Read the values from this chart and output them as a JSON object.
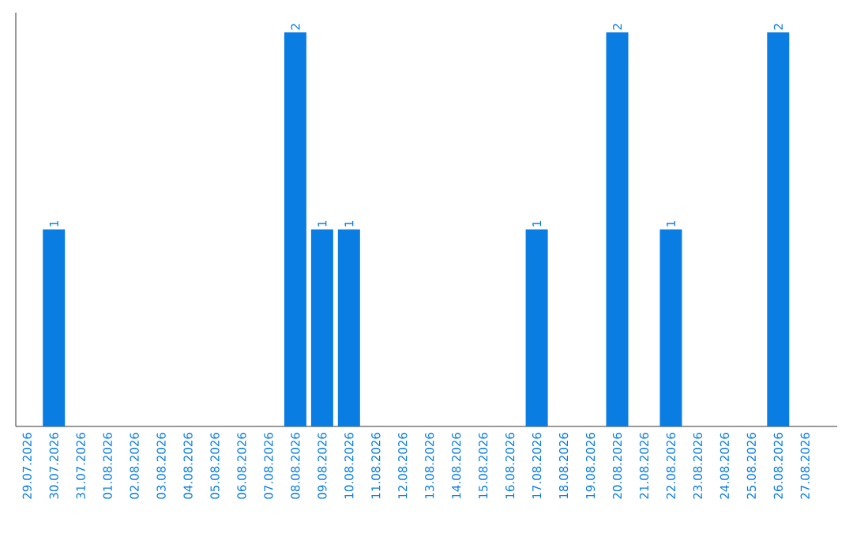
{
  "chart_data": {
    "type": "bar",
    "categories": [
      "29.07.2026",
      "30.07.2026",
      "31.07.2026",
      "01.08.2026",
      "02.08.2026",
      "03.08.2026",
      "04.08.2026",
      "05.08.2026",
      "06.08.2026",
      "07.08.2026",
      "08.08.2026",
      "09.08.2026",
      "10.08.2026",
      "11.08.2026",
      "12.08.2026",
      "13.08.2026",
      "14.08.2026",
      "15.08.2026",
      "16.08.2026",
      "17.08.2026",
      "18.08.2026",
      "19.08.2026",
      "20.08.2026",
      "21.08.2026",
      "22.08.2026",
      "23.08.2026",
      "24.08.2026",
      "25.08.2026",
      "26.08.2026",
      "27.08.2026"
    ],
    "values": [
      0,
      1,
      0,
      0,
      0,
      0,
      0,
      0,
      0,
      0,
      2,
      1,
      1,
      0,
      0,
      0,
      0,
      0,
      0,
      1,
      0,
      0,
      2,
      0,
      1,
      0,
      0,
      0,
      2,
      0
    ],
    "value_labels": [
      null,
      "1",
      null,
      null,
      null,
      null,
      null,
      null,
      null,
      null,
      "2",
      "1",
      "1",
      null,
      null,
      null,
      null,
      null,
      null,
      "1",
      null,
      null,
      "2",
      null,
      "1",
      null,
      null,
      null,
      "2",
      null
    ],
    "color": "#0a7de3",
    "ylim": [
      0,
      2.1
    ],
    "tick_labels": "x",
    "grid": false
  }
}
